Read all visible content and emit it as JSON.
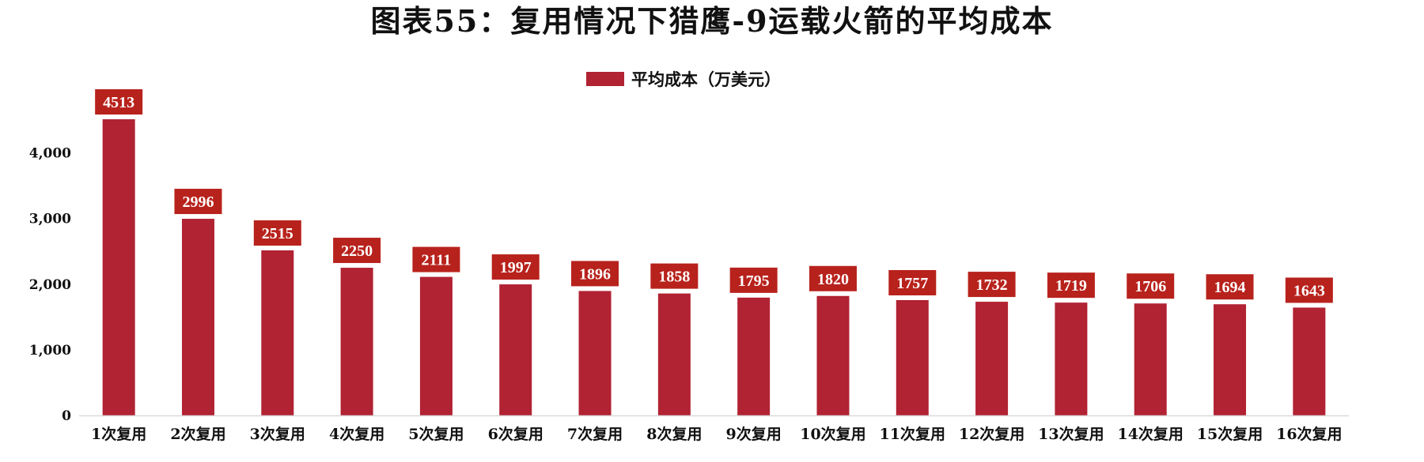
{
  "chart_data": {
    "type": "bar",
    "title": "图表55：复用情况下猎鹰-9运载火箭的平均成本",
    "categories": [
      "1次复用",
      "2次复用",
      "3次复用",
      "4次复用",
      "5次复用",
      "6次复用",
      "7次复用",
      "8次复用",
      "9次复用",
      "10次复用",
      "11次复用",
      "12次复用",
      "13次复用",
      "14次复用",
      "15次复用",
      "16次复用"
    ],
    "series": [
      {
        "name": "平均成本（万美元）",
        "values": [
          4513,
          2996,
          2515,
          2250,
          2111,
          1997,
          1896,
          1858,
          1795,
          1820,
          1757,
          1732,
          1719,
          1706,
          1694,
          1643
        ],
        "data_labels": [
          "4513",
          "2996",
          "2515",
          "2250",
          "2111",
          "1997",
          "1896",
          "1858",
          "1795",
          "1820",
          "1757",
          "1732",
          "1719",
          "1706",
          "1694",
          "1643"
        ]
      }
    ],
    "ylim": [
      0,
      4513
    ],
    "yticks": [
      0,
      1000,
      2000,
      3000,
      4000
    ],
    "ytick_labels": [
      "0",
      "1,000",
      "2,000",
      "3,000",
      "4,000"
    ],
    "legend_position": "top-center",
    "grid": false,
    "colors": {
      "bar": "#b12233",
      "label_bg": "#b8221c",
      "axis": "#d9d9d9"
    }
  }
}
